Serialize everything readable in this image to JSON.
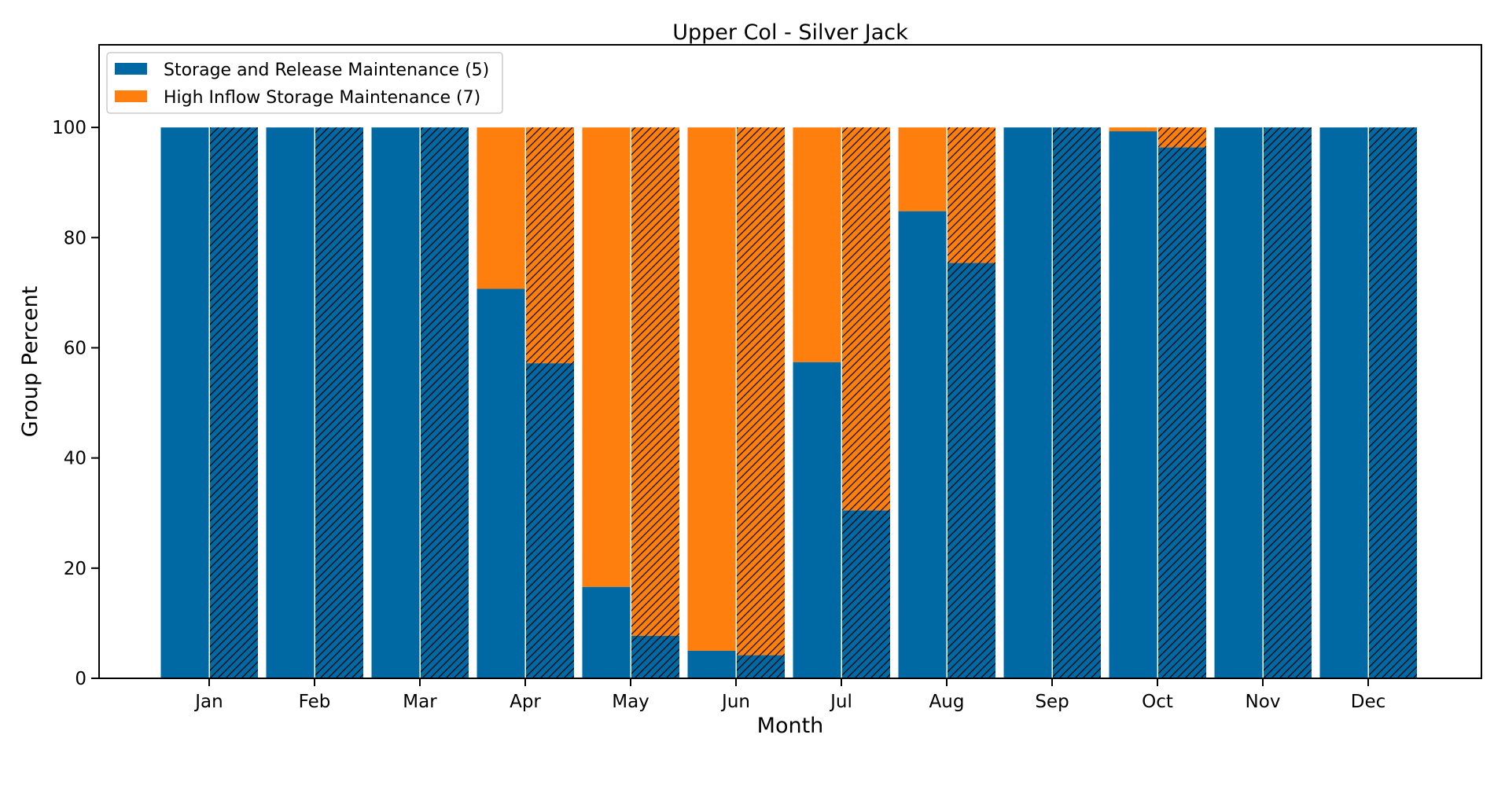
{
  "chart_data": {
    "type": "bar",
    "stacked": true,
    "title": "Upper Col - Silver Jack",
    "xlabel": "Month",
    "ylabel": "Group Percent",
    "ylim": [
      0,
      115
    ],
    "yticks": [
      0,
      20,
      40,
      60,
      80,
      100
    ],
    "grid": false,
    "legend_position": "top-left",
    "categories": [
      "Jan",
      "Feb",
      "Mar",
      "Apr",
      "May",
      "Jun",
      "Jul",
      "Aug",
      "Sep",
      "Oct",
      "Nov",
      "Dec"
    ],
    "groups": [
      {
        "name": "",
        "hatched": false
      },
      {
        "name": "",
        "hatched": true
      }
    ],
    "series": [
      {
        "name": "Storage and Release Maintenance (5)",
        "color": "#0068a3",
        "values_plain": [
          100,
          100,
          100,
          70.7,
          16.6,
          5.0,
          57.4,
          84.8,
          100,
          99.3,
          100,
          100
        ],
        "values_hatched": [
          100,
          100,
          100,
          57.2,
          7.7,
          4.2,
          30.5,
          75.4,
          100,
          96.4,
          100,
          100
        ]
      },
      {
        "name": "High Inflow Storage Maintenance (7)",
        "color": "#ff7f0e",
        "values_plain": [
          0,
          0,
          0,
          29.3,
          83.4,
          95.0,
          42.6,
          15.2,
          0,
          0.7,
          0,
          0
        ],
        "values_hatched": [
          0,
          0,
          0,
          42.8,
          92.3,
          95.8,
          69.5,
          24.6,
          0,
          3.6,
          0,
          0
        ]
      }
    ]
  }
}
